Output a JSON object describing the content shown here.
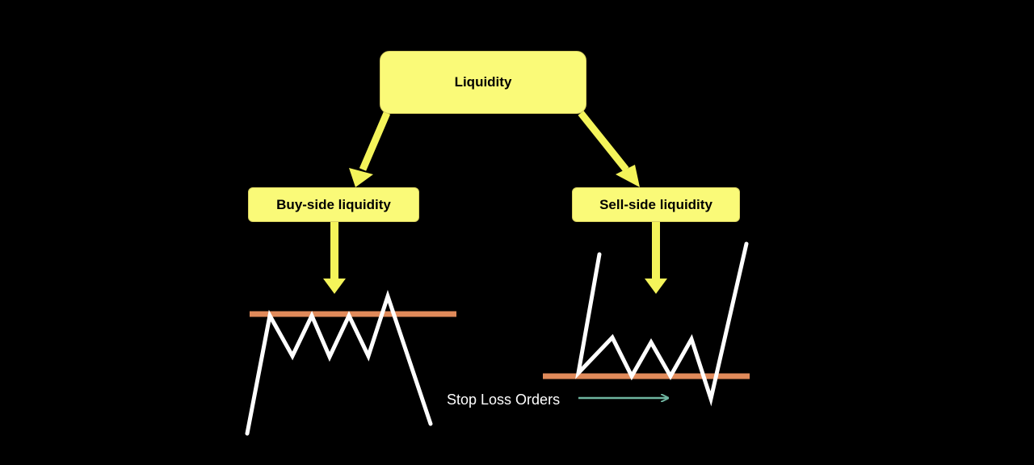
{
  "nodes": {
    "root": {
      "label": "Liquidity"
    },
    "buy_side": {
      "label": "Buy-side liquidity"
    },
    "sell_side": {
      "label": "Sell-side liquidity"
    }
  },
  "annotation": {
    "stop_loss_label": "Stop Loss Orders"
  },
  "colors": {
    "background": "#000000",
    "box_fill": "#fafa78",
    "arrow": "#f4f45a",
    "level_line": "#e08a5a",
    "price_line": "#ffffff",
    "stop_arrow": "#6fb5a0"
  }
}
